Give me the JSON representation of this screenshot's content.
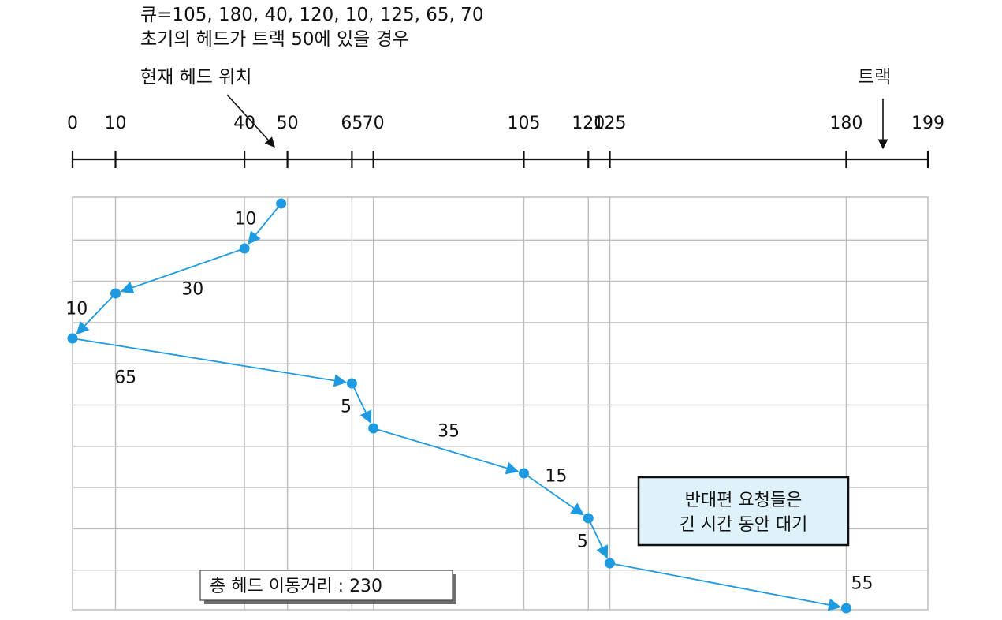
{
  "header": {
    "queue_text": "큐=105, 180, 40, 120, 10, 125, 65, 70",
    "initial_text": "초기의 헤드가 트랙 50에 있을 경우",
    "current_head_label": "현재 헤드 위치",
    "track_label": "트랙"
  },
  "axis": {
    "min": 0,
    "max": 199,
    "ticks": [
      "0",
      "10",
      "40",
      "50",
      "65",
      "70",
      "105",
      "120",
      "125",
      "180",
      "199"
    ],
    "head_position": 50
  },
  "path": {
    "sequence": [
      50,
      40,
      10,
      0,
      65,
      70,
      105,
      120,
      125,
      180
    ],
    "distance_labels": [
      "10",
      "30",
      "10",
      "65",
      "5",
      "35",
      "15",
      "5",
      "55"
    ]
  },
  "total_box": {
    "text": "총 헤드 이동거리 : 230"
  },
  "note_box": {
    "line1": "반대편 요청들은",
    "line2": "긴 시간 동안 대기"
  },
  "colors": {
    "path": "#1e9ae0",
    "grid": "#bdbdbd",
    "axis": "#111111",
    "note_bg": "#dff1f9"
  }
}
